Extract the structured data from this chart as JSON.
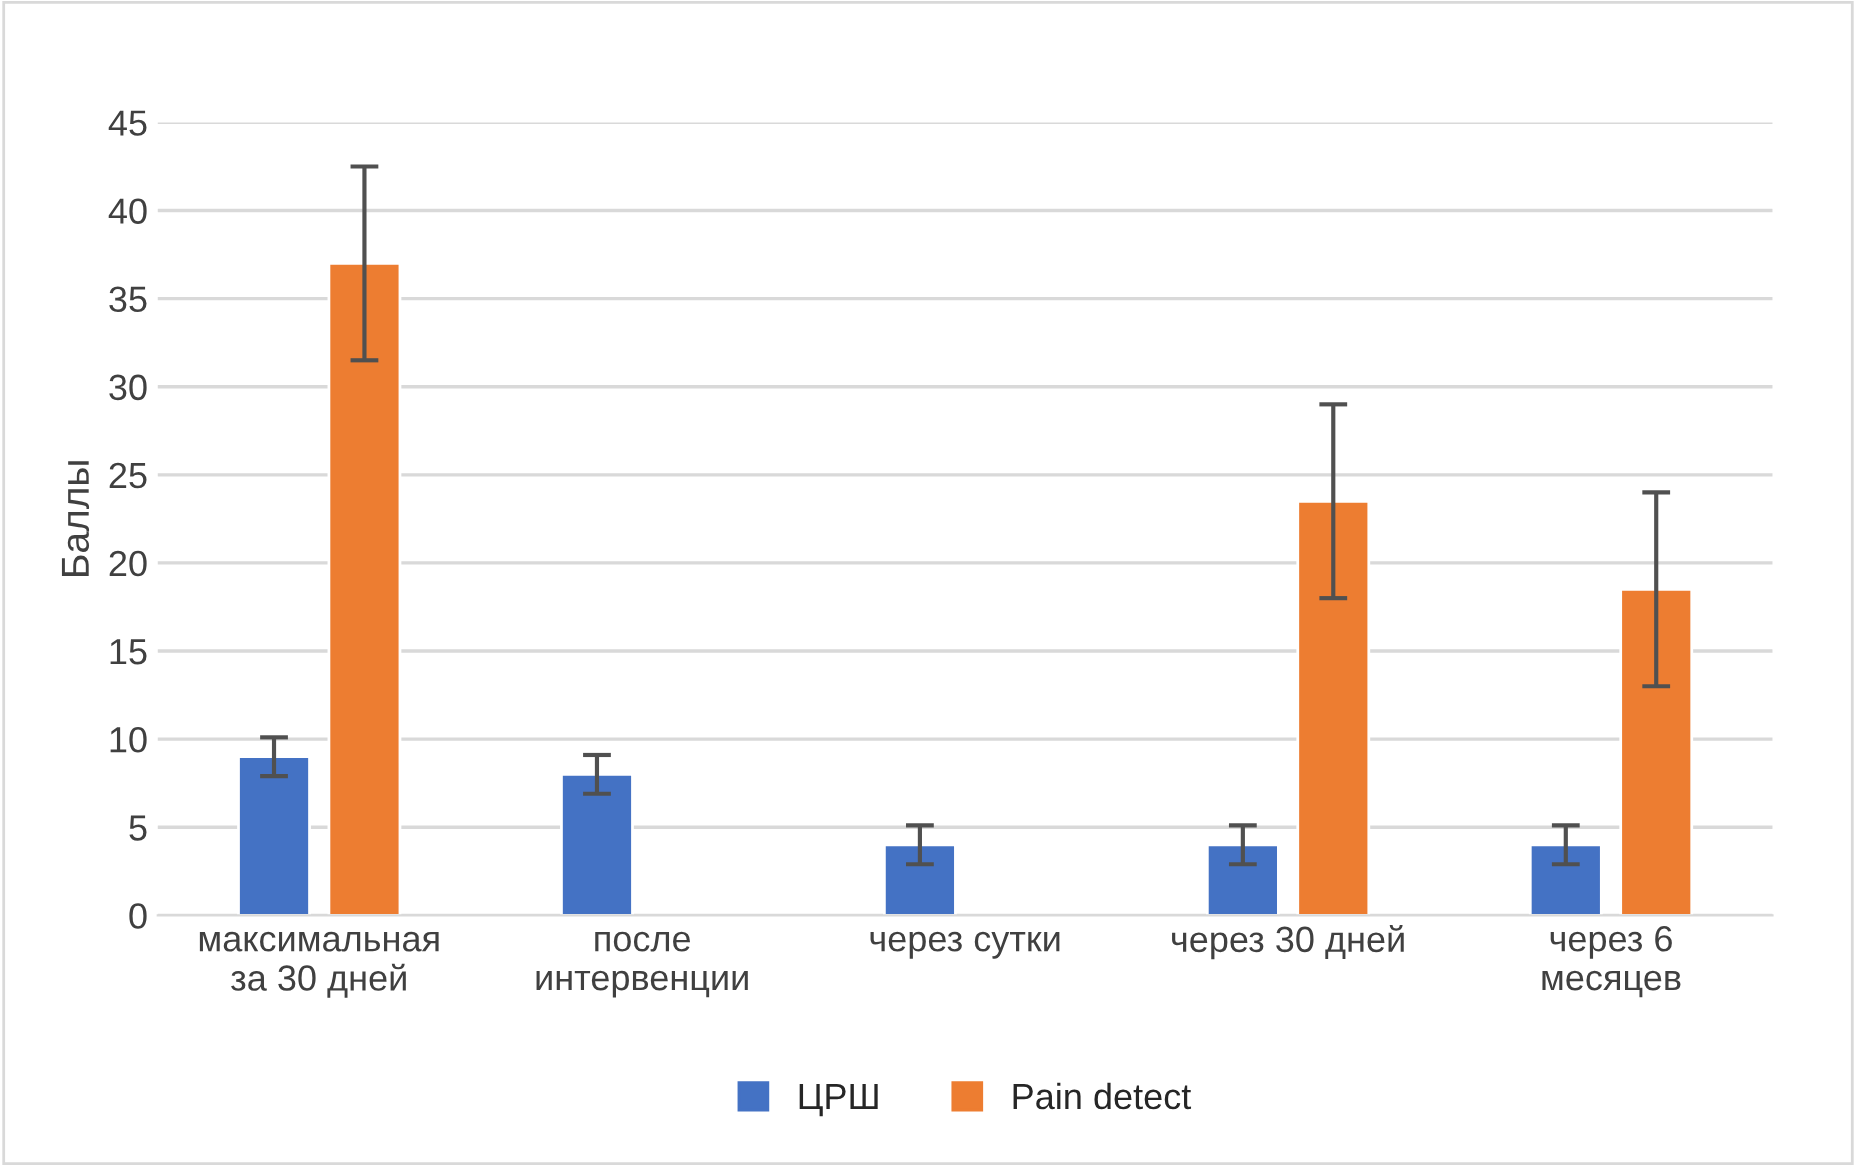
{
  "chart_data": {
    "type": "bar",
    "ylabel": "Баллы",
    "categories": [
      "максимальная\nза 30 дней",
      "после\nинтервенции",
      "через сутки",
      "через 30 дней",
      "через 6\nмесяцев"
    ],
    "series": [
      {
        "name": "ЦРШ",
        "color": "#4472c4",
        "values": [
          9,
          8,
          4,
          4,
          4
        ],
        "errors": [
          1.1,
          1.1,
          1.1,
          1.1,
          1.1
        ]
      },
      {
        "name": "Pain detect",
        "color": "#ed7d31",
        "values": [
          37,
          null,
          null,
          23.5,
          18.5
        ],
        "errors": [
          5.5,
          null,
          null,
          5.5,
          5.5
        ]
      }
    ],
    "ylim": [
      0,
      45
    ],
    "yticks": [
      0,
      5,
      10,
      15,
      20,
      25,
      30,
      35,
      40,
      45
    ],
    "grid": "y",
    "legend": "bottom"
  }
}
